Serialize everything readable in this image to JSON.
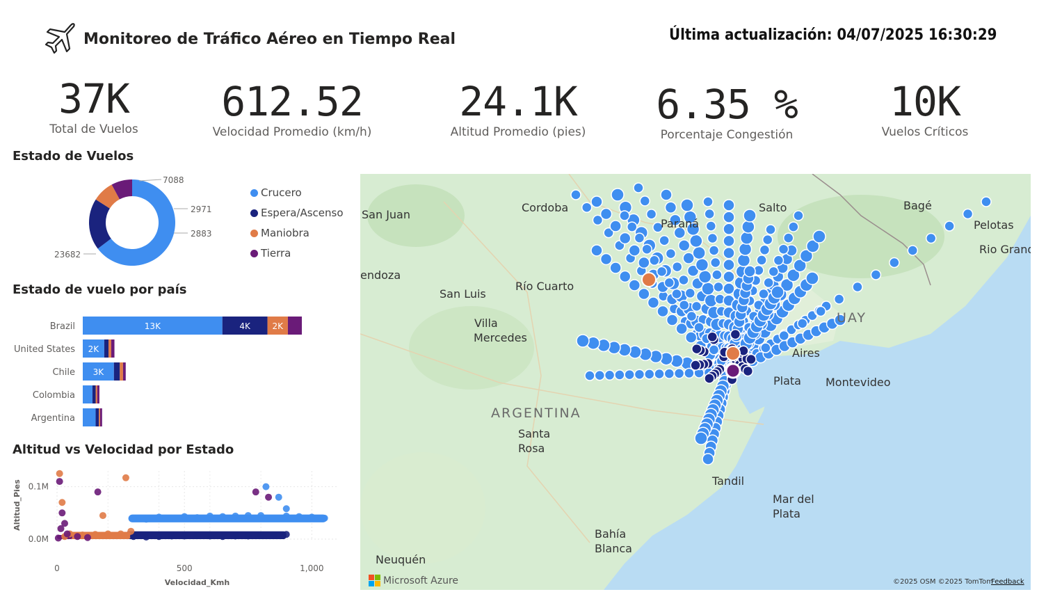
{
  "header": {
    "title": "Monitoreo de Tráfico Aéreo en Tiempo Real",
    "last_update": "Última actualización: 04/07/2025 16:30:29",
    "icon": "airplane-icon"
  },
  "kpis": [
    {
      "value": "37K",
      "label": "Total de Vuelos"
    },
    {
      "value": "612.52",
      "label": "Velocidad Promedio (km/h)"
    },
    {
      "value": "24.1K",
      "label": "Altitud Promedio (pies)"
    },
    {
      "value": "6.35 %",
      "label": "Porcentaje Congestión"
    },
    {
      "value": "10K",
      "label": "Vuelos Críticos"
    }
  ],
  "colors": {
    "crucero": "#3f8ef0",
    "espera": "#1a237e",
    "maniobra": "#e07b47",
    "tierra": "#6a1b78"
  },
  "chart_data": [
    {
      "type": "pie",
      "title": "Estado de Vuelos",
      "categories": [
        "Crucero",
        "Espera/Ascenso",
        "Maniobra",
        "Tierra"
      ],
      "values": [
        23682,
        7088,
        2971,
        2883
      ],
      "data_labels": [
        "23682",
        "7088",
        "2971",
        "2883"
      ],
      "legend": "right"
    },
    {
      "type": "bar",
      "title": "Estado de vuelo por país",
      "orientation": "horizontal",
      "stacked": true,
      "categories": [
        "Brazil",
        "United States",
        "Chile",
        "Colombia",
        "Argentina"
      ],
      "series": [
        {
          "name": "Crucero",
          "values": [
            13000,
            2000,
            2900,
            900,
            1200
          ],
          "labels": [
            "13K",
            "2K",
            "3K",
            "",
            ""
          ]
        },
        {
          "name": "Espera/Ascenso",
          "values": [
            4200,
            400,
            550,
            300,
            300
          ],
          "labels": [
            "4K",
            "",
            "",
            "",
            ""
          ]
        },
        {
          "name": "Maniobra",
          "values": [
            1900,
            250,
            300,
            150,
            120
          ],
          "labels": [
            "2K",
            "",
            "",
            "",
            ""
          ]
        },
        {
          "name": "Tierra",
          "values": [
            1300,
            300,
            250,
            200,
            180
          ],
          "labels": [
            "",
            "",
            "",
            "",
            ""
          ]
        }
      ]
    },
    {
      "type": "scatter",
      "title": "Altitud vs Velocidad por Estado",
      "xlabel": "Velocidad_Kmh",
      "ylabel": "Altitud_Pies",
      "xlim": [
        0,
        1100
      ],
      "ylim": [
        0,
        130000
      ],
      "xticks": [
        {
          "v": 0,
          "label": "0"
        },
        {
          "v": 500,
          "label": "500"
        },
        {
          "v": 1000,
          "label": "1,000"
        }
      ],
      "yticks": [
        {
          "v": 0,
          "label": "0.0M"
        },
        {
          "v": 100000,
          "label": "0.1M"
        }
      ],
      "series": [
        {
          "name": "Crucero",
          "points": [
            [
              300,
              40000
            ],
            [
              400,
              42000
            ],
            [
              500,
              43000
            ],
            [
              600,
              44000
            ],
            [
              700,
              44000
            ],
            [
              800,
              45000
            ],
            [
              900,
              44000
            ],
            [
              1000,
              42000
            ],
            [
              1050,
              40000
            ],
            [
              820,
              100000
            ],
            [
              870,
              80000
            ],
            [
              900,
              58000
            ],
            [
              350,
              38000
            ],
            [
              450,
              40000
            ],
            [
              550,
              41000
            ],
            [
              650,
              43000
            ],
            [
              750,
              45000
            ],
            [
              950,
              43000
            ]
          ]
        },
        {
          "name": "Espera/Ascenso",
          "points": [
            [
              300,
              5000
            ],
            [
              400,
              5000
            ],
            [
              500,
              6000
            ],
            [
              600,
              6000
            ],
            [
              700,
              6000
            ],
            [
              800,
              7000
            ],
            [
              900,
              9000
            ],
            [
              350,
              4000
            ],
            [
              450,
              6000
            ],
            [
              550,
              7000
            ],
            [
              650,
              5000
            ],
            [
              750,
              6000
            ],
            [
              850,
              8000
            ]
          ]
        },
        {
          "name": "Maniobra",
          "points": [
            [
              10,
              125000
            ],
            [
              270,
              117000
            ],
            [
              180,
              45000
            ],
            [
              20,
              70000
            ],
            [
              50,
              10000
            ],
            [
              100,
              8000
            ],
            [
              150,
              9000
            ],
            [
              200,
              10000
            ],
            [
              250,
              10000
            ],
            [
              290,
              15000
            ],
            [
              30,
              5000
            ]
          ]
        },
        {
          "name": "Tierra",
          "points": [
            [
              10,
              110000
            ],
            [
              160,
              90000
            ],
            [
              780,
              90000
            ],
            [
              830,
              80000
            ],
            [
              20,
              50000
            ],
            [
              30,
              30000
            ],
            [
              40,
              10000
            ],
            [
              80,
              5000
            ],
            [
              120,
              3000
            ],
            [
              5,
              2000
            ],
            [
              15,
              20000
            ]
          ]
        }
      ]
    }
  ],
  "map": {
    "cities": [
      "San Juan",
      "Cordoba",
      "Paraná",
      "Salto",
      "Bagé",
      "Pelotas",
      "Rio Grande",
      "Mendoza",
      "San Luis",
      "Río Cuarto",
      "Villa Mercedes",
      "URUGUAY",
      "Buenos Aires",
      "La Plata",
      "Montevideo",
      "ARGENTINA",
      "Santa Rosa",
      "Tandil",
      "Mar del Plata",
      "Bahía Blanca",
      "Neuquén"
    ],
    "labels": {
      "san_juan": "San Juan",
      "cordoba": "Cordoba",
      "parana": "Paraná",
      "salto": "Salto",
      "bage": "Bagé",
      "pelotas": "Pelotas",
      "rio_grande": "Rio Grand",
      "mendoza": "endoza",
      "san_luis": "San Luis",
      "rio_cuarto": "Río Cuarto",
      "villa": "Villa",
      "mercedes": "Mercedes",
      "uruguay": "UAY",
      "aires": "Aires",
      "plata": "Plata",
      "montevideo": "Montevideo",
      "argentina": "ARGENTINA",
      "santa": "Santa",
      "rosa": "Rosa",
      "tandil": "Tandil",
      "mar_del": "Mar del",
      "mar_plata": "Plata",
      "bahia": "Bahía",
      "blanca": "Blanca",
      "neuquen": "Neuquén"
    },
    "attribution": "Microsoft Azure",
    "copyright": "©2025 OSM  ©2025 TomTom",
    "feedback": "Feedback"
  }
}
